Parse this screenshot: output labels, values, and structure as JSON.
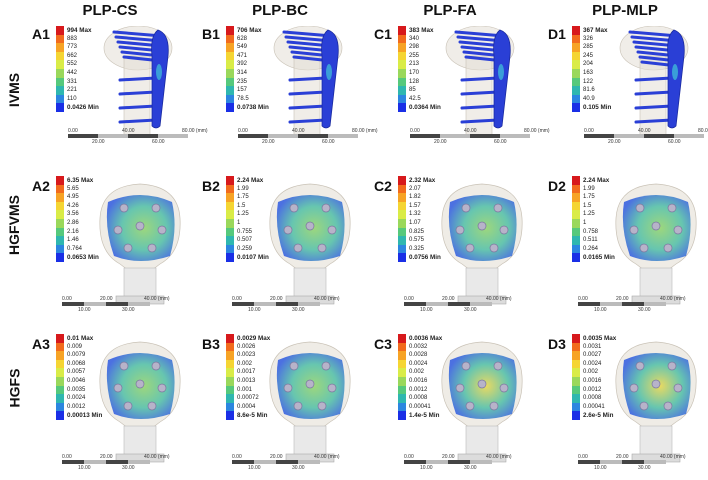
{
  "columns": [
    "PLP-CS",
    "PLP-BC",
    "PLP-FA",
    "PLP-MLP"
  ],
  "rows": [
    "IVMS",
    "HGFVMS",
    "HGFS"
  ],
  "scales": {
    "ivms": {
      "top": [
        "0.00",
        "40.00",
        "80.00 (mm)"
      ],
      "bottom": [
        "20.00",
        "60.00"
      ]
    },
    "head": {
      "top": [
        "0.00",
        "20.00",
        "40.00 (mm)"
      ],
      "bottom": [
        "10.00",
        "30.00"
      ]
    }
  },
  "colors": {
    "legend": [
      "#d7191c",
      "#f26b1d",
      "#f7a325",
      "#f5d533",
      "#d9ec47",
      "#9ad85b",
      "#56c97c",
      "#2fb7b0",
      "#2c86e0",
      "#1a2fe6"
    ],
    "plate": "#2a3fd6",
    "bone": "#e4dfd6"
  },
  "panels": [
    {
      "id": "A1",
      "type": "ivms",
      "legend": [
        "994 Max",
        "883",
        "773",
        "662",
        "552",
        "442",
        "331",
        "221",
        "110",
        "0.0426 Min"
      ]
    },
    {
      "id": "B1",
      "type": "ivms",
      "legend": [
        "706 Max",
        "628",
        "549",
        "471",
        "392",
        "314",
        "235",
        "157",
        "78.5",
        "0.0738 Min"
      ]
    },
    {
      "id": "C1",
      "type": "ivms",
      "legend": [
        "383 Max",
        "340",
        "298",
        "255",
        "213",
        "170",
        "128",
        "85",
        "42.5",
        "0.0364 Min"
      ]
    },
    {
      "id": "D1",
      "type": "ivms",
      "legend": [
        "367 Max",
        "326",
        "285",
        "245",
        "204",
        "163",
        "122",
        "81.6",
        "40.9",
        "0.105 Min"
      ]
    },
    {
      "id": "A2",
      "type": "head",
      "legend": [
        "6.35 Max",
        "5.65",
        "4.95",
        "4.26",
        "3.56",
        "2.86",
        "2.16",
        "1.46",
        "0.764",
        "0.0653 Min"
      ]
    },
    {
      "id": "B2",
      "type": "head",
      "legend": [
        "2.24 Max",
        "1.99",
        "1.75",
        "1.5",
        "1.25",
        "1",
        "0.755",
        "0.507",
        "0.259",
        "0.0107 Min"
      ]
    },
    {
      "id": "C2",
      "type": "head",
      "legend": [
        "2.32 Max",
        "2.07",
        "1.82",
        "1.57",
        "1.32",
        "1.07",
        "0.825",
        "0.575",
        "0.325",
        "0.0756 Min"
      ]
    },
    {
      "id": "D2",
      "type": "head",
      "legend": [
        "2.24 Max",
        "1.99",
        "1.75",
        "1.5",
        "1.25",
        "1",
        "0.758",
        "0.511",
        "0.264",
        "0.0165 Min"
      ]
    },
    {
      "id": "A3",
      "type": "head",
      "legend": [
        "0.01 Max",
        "0.009",
        "0.0079",
        "0.0068",
        "0.0057",
        "0.0046",
        "0.0035",
        "0.0024",
        "0.0012",
        "0.00013 Min"
      ]
    },
    {
      "id": "B3",
      "type": "head",
      "legend": [
        "0.0029 Max",
        "0.0026",
        "0.0023",
        "0.002",
        "0.0017",
        "0.0013",
        "0.001",
        "0.00072",
        "0.0004",
        "8.6e-5 Min"
      ]
    },
    {
      "id": "C3",
      "type": "head",
      "legend": [
        "0.0036 Max",
        "0.0032",
        "0.0028",
        "0.0024",
        "0.002",
        "0.0016",
        "0.0012",
        "0.0008",
        "0.00041",
        "1.4e-5 Min"
      ]
    },
    {
      "id": "D3",
      "type": "head",
      "legend": [
        "0.0035 Max",
        "0.0031",
        "0.0027",
        "0.0024",
        "0.002",
        "0.0016",
        "0.0012",
        "0.0008",
        "0.00041",
        "2.6e-5 Min"
      ]
    }
  ]
}
